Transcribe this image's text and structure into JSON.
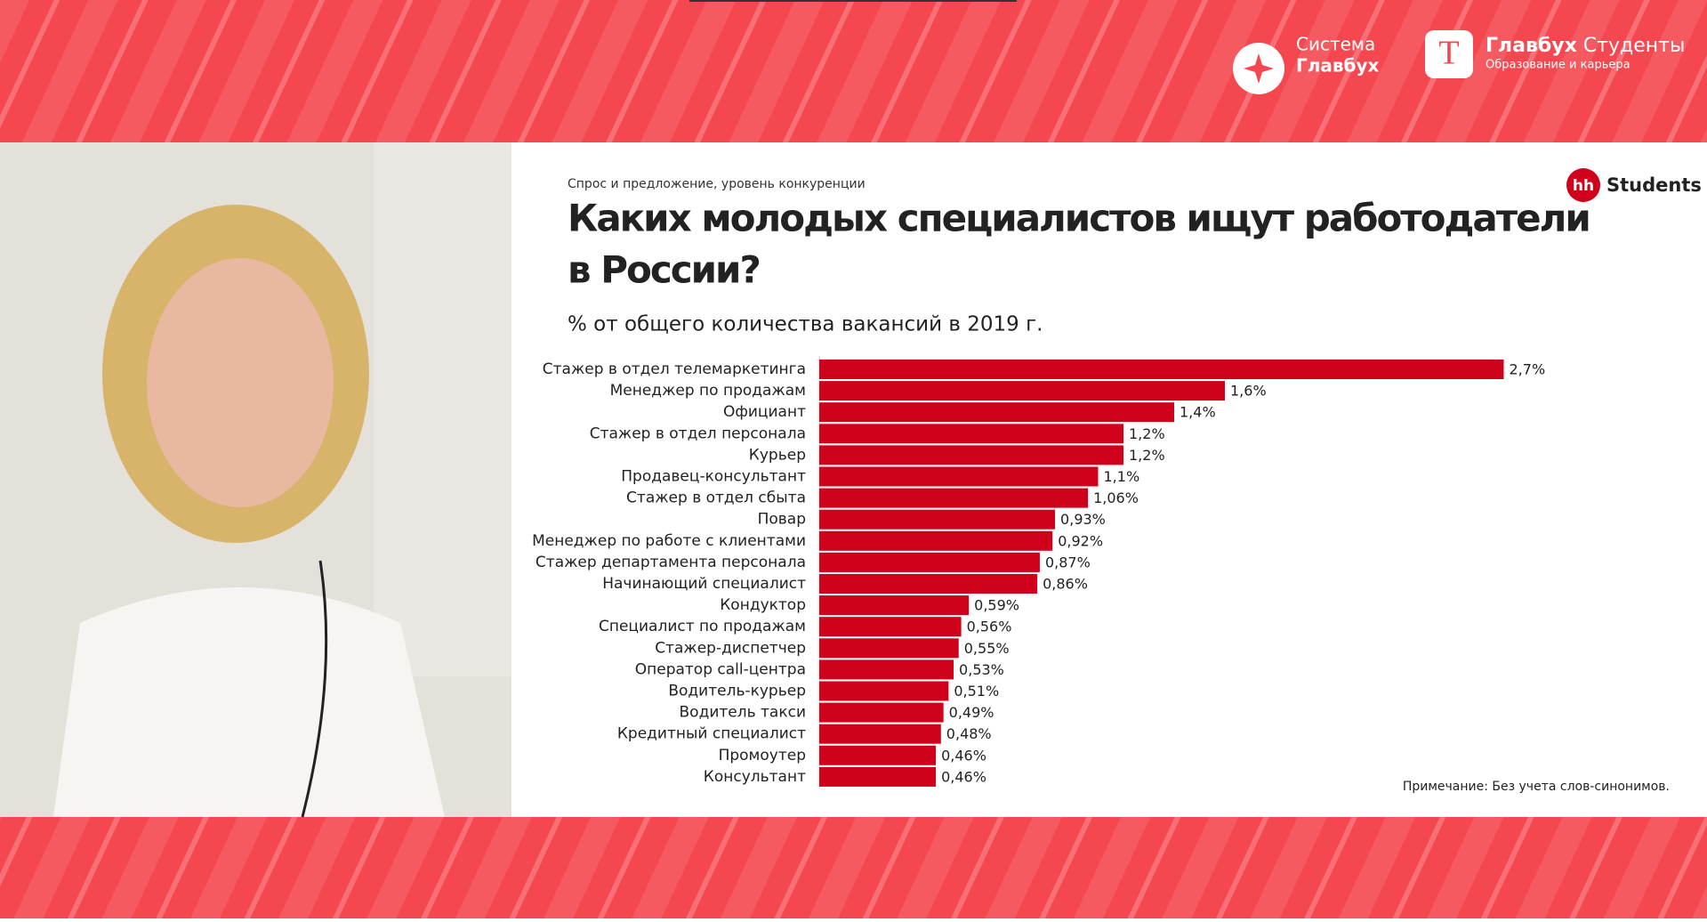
{
  "header": {
    "logo1": [
      "Система",
      "Главбух"
    ],
    "logo2": {
      "title": "Главбух",
      "title2": "Студенты",
      "subtitle": "Образование и карьера"
    }
  },
  "slide": {
    "brand": "Students",
    "brand_badge": "hh",
    "note": "Примечание: Без учета слов-синонимов."
  },
  "chart_data": {
    "type": "bar",
    "orientation": "horizontal",
    "kicker": "Спрос и предложение, уровень конкуренции",
    "title": [
      "Каких молодых специалистов ищут работодатели",
      "в России?"
    ],
    "subtitle": "% от общего количества вакансий в 2019 г.",
    "color": "#d0021b",
    "categories": [
      "Стажер в отдел телемаркетинга",
      "Менеджер по продажам",
      "Официант",
      "Стажер в отдел персонала",
      "Курьер",
      "Продавец-консультант",
      "Стажер в отдел сбыта",
      "Повар",
      "Менеджер по работе с клиентами",
      "Стажер департамента персонала",
      "Начинающий специалист",
      "Кондуктор",
      "Специалист по продажам",
      "Стажер-диспетчер",
      "Оператор call-центра",
      "Водитель-курьер",
      "Водитель такси",
      "Кредитный специалист",
      "Промоутер",
      "Консультант"
    ],
    "values": [
      2.7,
      1.6,
      1.4,
      1.2,
      1.2,
      1.1,
      1.06,
      0.93,
      0.92,
      0.87,
      0.86,
      0.59,
      0.56,
      0.55,
      0.53,
      0.51,
      0.49,
      0.48,
      0.46,
      0.46
    ],
    "value_labels": [
      "2,7%",
      "1,6%",
      "1,4%",
      "1,2%",
      "1,2%",
      "1,1%",
      "1,06%",
      "0,93%",
      "0,92%",
      "0,87%",
      "0,86%",
      "0,59%",
      "0,56%",
      "0,55%",
      "0,53%",
      "0,51%",
      "0,49%",
      "0,48%",
      "0,46%",
      "0,46%"
    ]
  }
}
